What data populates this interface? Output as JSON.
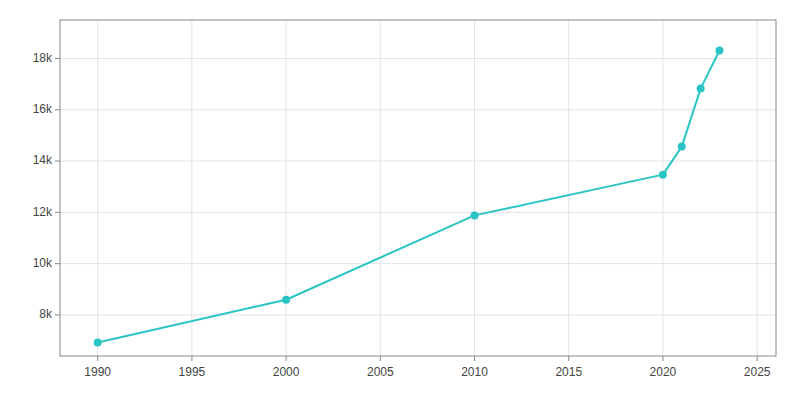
{
  "chart_data": {
    "type": "line",
    "x": [
      1990,
      2000,
      2010,
      2020,
      2021,
      2022,
      2023
    ],
    "values": [
      6927,
      8593,
      11882,
      13471,
      14565,
      16825,
      18311
    ],
    "color": "#2BC4C4",
    "marker": "circle",
    "xlim": [
      1988,
      2026
    ],
    "ylim": [
      6400,
      19500
    ],
    "xticks": [
      1990,
      1995,
      2000,
      2005,
      2010,
      2015,
      2020,
      2025
    ],
    "yticks": [
      {
        "value": 8000,
        "label": "8k"
      },
      {
        "value": 10000,
        "label": "10k"
      },
      {
        "value": 12000,
        "label": "12k"
      },
      {
        "value": 14000,
        "label": "14k"
      },
      {
        "value": 16000,
        "label": "16k"
      },
      {
        "value": 18000,
        "label": "18k"
      }
    ],
    "grid": true
  }
}
